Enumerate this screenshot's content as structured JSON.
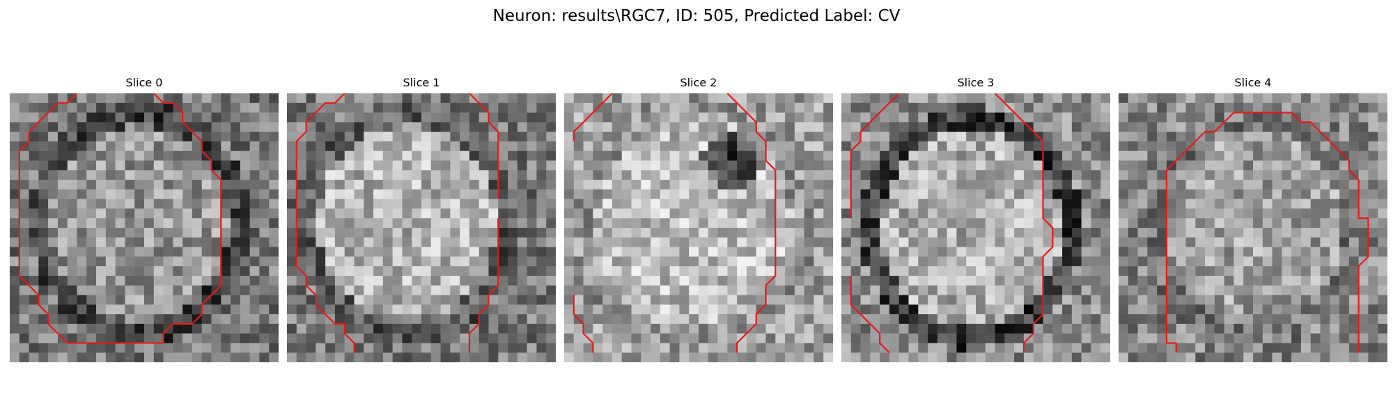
{
  "figure": {
    "title": "Neuron: results\\RGC7, ID: 505, Predicted Label: CV",
    "contour_color": "#e41a1c",
    "colormap": "gray"
  },
  "panels": [
    {
      "title": "Slice 0",
      "contours": [
        [
          [
            7,
            0
          ],
          [
            6,
            1
          ],
          [
            5,
            1
          ],
          [
            4,
            2
          ],
          [
            3,
            3
          ],
          [
            2,
            4
          ],
          [
            2,
            5
          ],
          [
            1,
            6
          ],
          [
            1,
            7
          ],
          [
            1,
            8
          ],
          [
            1,
            9
          ],
          [
            1,
            10
          ],
          [
            1,
            11
          ],
          [
            1,
            12
          ],
          [
            1,
            13
          ],
          [
            1,
            14
          ],
          [
            1,
            15
          ],
          [
            1,
            16
          ],
          [
            1,
            17
          ],
          [
            1,
            18
          ],
          [
            1,
            19
          ],
          [
            2,
            20
          ],
          [
            3,
            21
          ],
          [
            3,
            22
          ],
          [
            4,
            23
          ],
          [
            4,
            24
          ],
          [
            5,
            25
          ],
          [
            6,
            26
          ],
          [
            7,
            26
          ],
          [
            8,
            26
          ],
          [
            9,
            26
          ],
          [
            10,
            26
          ],
          [
            11,
            26
          ],
          [
            12,
            26
          ],
          [
            13,
            26
          ],
          [
            14,
            26
          ],
          [
            15,
            26
          ],
          [
            16,
            26
          ],
          [
            16,
            25
          ],
          [
            17,
            24
          ],
          [
            18,
            24
          ],
          [
            19,
            24
          ],
          [
            20,
            23
          ],
          [
            20,
            22
          ],
          [
            21,
            21
          ],
          [
            22,
            20
          ],
          [
            22,
            19
          ],
          [
            22,
            18
          ],
          [
            22,
            17
          ],
          [
            22,
            16
          ],
          [
            22,
            15
          ],
          [
            22,
            14
          ],
          [
            22,
            13
          ],
          [
            22,
            12
          ],
          [
            22,
            11
          ],
          [
            22,
            10
          ],
          [
            22,
            9
          ],
          [
            21,
            8
          ],
          [
            21,
            7
          ],
          [
            20,
            6
          ],
          [
            20,
            5
          ],
          [
            19,
            4
          ],
          [
            18,
            3
          ],
          [
            18,
            2
          ],
          [
            17,
            1
          ],
          [
            16,
            1
          ],
          [
            15,
            0
          ]
        ]
      ]
    },
    {
      "title": "Slice 1",
      "contours": [
        [
          [
            6,
            0
          ],
          [
            5,
            1
          ],
          [
            4,
            1
          ],
          [
            3,
            2
          ],
          [
            2,
            3
          ],
          [
            2,
            4
          ],
          [
            1,
            5
          ],
          [
            1,
            6
          ],
          [
            1,
            7
          ],
          [
            1,
            8
          ],
          [
            1,
            9
          ],
          [
            1,
            10
          ],
          [
            1,
            11
          ],
          [
            1,
            12
          ],
          [
            1,
            13
          ],
          [
            1,
            14
          ],
          [
            1,
            15
          ],
          [
            1,
            16
          ],
          [
            1,
            17
          ],
          [
            1,
            18
          ],
          [
            2,
            19
          ],
          [
            2,
            20
          ],
          [
            3,
            21
          ],
          [
            3,
            22
          ],
          [
            4,
            23
          ],
          [
            5,
            24
          ],
          [
            6,
            24
          ],
          [
            6,
            25
          ],
          [
            7,
            26
          ],
          [
            7,
            27
          ]
        ],
        [
          [
            19,
            0
          ],
          [
            20,
            1
          ],
          [
            21,
            2
          ],
          [
            21,
            3
          ],
          [
            22,
            4
          ],
          [
            22,
            5
          ],
          [
            22,
            6
          ],
          [
            22,
            7
          ],
          [
            22,
            8
          ],
          [
            22,
            9
          ],
          [
            22,
            10
          ],
          [
            22,
            11
          ]
        ],
        [
          [
            22,
            13
          ],
          [
            22,
            14
          ],
          [
            22,
            15
          ],
          [
            22,
            16
          ],
          [
            22,
            17
          ],
          [
            22,
            18
          ],
          [
            22,
            19
          ],
          [
            22,
            20
          ],
          [
            21,
            21
          ],
          [
            21,
            22
          ],
          [
            20,
            23
          ],
          [
            20,
            24
          ],
          [
            19,
            25
          ],
          [
            19,
            26
          ],
          [
            19,
            27
          ]
        ]
      ]
    },
    {
      "title": "Slice 2",
      "contours": [
        [
          [
            5,
            0
          ],
          [
            4,
            1
          ],
          [
            3,
            2
          ],
          [
            2,
            3
          ],
          [
            1,
            4
          ],
          [
            1,
            5
          ]
        ],
        [
          [
            17,
            0
          ],
          [
            18,
            1
          ],
          [
            19,
            2
          ],
          [
            20,
            3
          ],
          [
            20,
            4
          ],
          [
            21,
            5
          ],
          [
            21,
            6
          ],
          [
            21,
            7
          ],
          [
            22,
            8
          ],
          [
            22,
            9
          ],
          [
            22,
            10
          ],
          [
            22,
            11
          ],
          [
            22,
            12
          ],
          [
            22,
            13
          ],
          [
            22,
            14
          ],
          [
            22,
            15
          ],
          [
            22,
            16
          ],
          [
            22,
            17
          ],
          [
            22,
            18
          ],
          [
            22,
            19
          ],
          [
            21,
            20
          ],
          [
            21,
            21
          ],
          [
            21,
            22
          ],
          [
            20,
            23
          ],
          [
            20,
            24
          ],
          [
            19,
            25
          ],
          [
            18,
            26
          ],
          [
            18,
            27
          ]
        ],
        [
          [
            1,
            21
          ],
          [
            1,
            22
          ],
          [
            1,
            23
          ],
          [
            2,
            24
          ],
          [
            2,
            25
          ],
          [
            3,
            26
          ],
          [
            3,
            27
          ]
        ]
      ]
    },
    {
      "title": "Slice 3",
      "contours": [
        [
          [
            6,
            0
          ],
          [
            5,
            1
          ],
          [
            4,
            2
          ],
          [
            3,
            3
          ],
          [
            2,
            4
          ],
          [
            2,
            5
          ],
          [
            1,
            6
          ],
          [
            1,
            7
          ],
          [
            1,
            8
          ],
          [
            1,
            9
          ],
          [
            1,
            10
          ],
          [
            1,
            11
          ],
          [
            1,
            12
          ],
          [
            1,
            13
          ]
        ],
        [
          [
            16,
            0
          ],
          [
            17,
            1
          ],
          [
            18,
            2
          ],
          [
            19,
            3
          ],
          [
            20,
            4
          ],
          [
            21,
            5
          ],
          [
            21,
            6
          ],
          [
            21,
            7
          ],
          [
            21,
            8
          ],
          [
            21,
            9
          ],
          [
            21,
            10
          ],
          [
            21,
            11
          ],
          [
            21,
            12
          ],
          [
            21,
            13
          ],
          [
            22,
            14
          ],
          [
            22,
            15
          ],
          [
            22,
            16
          ],
          [
            21,
            17
          ],
          [
            21,
            18
          ],
          [
            21,
            19
          ],
          [
            21,
            20
          ],
          [
            21,
            21
          ],
          [
            21,
            22
          ],
          [
            21,
            23
          ],
          [
            20,
            24
          ],
          [
            20,
            25
          ],
          [
            19,
            26
          ],
          [
            19,
            27
          ]
        ],
        [
          [
            1,
            19
          ],
          [
            1,
            20
          ],
          [
            1,
            21
          ],
          [
            1,
            22
          ],
          [
            2,
            23
          ],
          [
            3,
            24
          ],
          [
            4,
            25
          ],
          [
            4,
            26
          ],
          [
            5,
            27
          ]
        ]
      ]
    },
    {
      "title": "Slice 4",
      "contours": [
        [
          [
            6,
            27
          ],
          [
            6,
            26
          ],
          [
            5,
            26
          ],
          [
            5,
            25
          ],
          [
            5,
            24
          ],
          [
            5,
            23
          ],
          [
            5,
            22
          ],
          [
            5,
            21
          ],
          [
            5,
            20
          ],
          [
            5,
            19
          ],
          [
            5,
            18
          ],
          [
            5,
            17
          ],
          [
            5,
            16
          ],
          [
            5,
            15
          ],
          [
            5,
            14
          ],
          [
            5,
            13
          ],
          [
            5,
            12
          ],
          [
            5,
            11
          ],
          [
            5,
            10
          ],
          [
            5,
            9
          ],
          [
            5,
            8
          ],
          [
            6,
            7
          ],
          [
            7,
            6
          ],
          [
            8,
            5
          ],
          [
            9,
            4
          ],
          [
            10,
            4
          ],
          [
            11,
            3
          ],
          [
            12,
            2
          ],
          [
            13,
            2
          ],
          [
            14,
            2
          ],
          [
            15,
            2
          ],
          [
            16,
            2
          ],
          [
            17,
            2
          ],
          [
            18,
            2
          ],
          [
            19,
            3
          ],
          [
            20,
            3
          ],
          [
            21,
            4
          ],
          [
            22,
            5
          ],
          [
            23,
            6
          ],
          [
            24,
            7
          ],
          [
            24,
            8
          ],
          [
            25,
            9
          ],
          [
            25,
            10
          ],
          [
            25,
            11
          ],
          [
            25,
            12
          ],
          [
            25,
            13
          ],
          [
            26,
            13
          ],
          [
            26,
            14
          ],
          [
            26,
            15
          ],
          [
            26,
            16
          ],
          [
            26,
            17
          ],
          [
            25,
            18
          ],
          [
            25,
            19
          ],
          [
            25,
            20
          ],
          [
            25,
            21
          ],
          [
            25,
            22
          ],
          [
            25,
            23
          ],
          [
            25,
            24
          ],
          [
            25,
            25
          ],
          [
            25,
            26
          ],
          [
            25,
            27
          ]
        ]
      ]
    }
  ]
}
